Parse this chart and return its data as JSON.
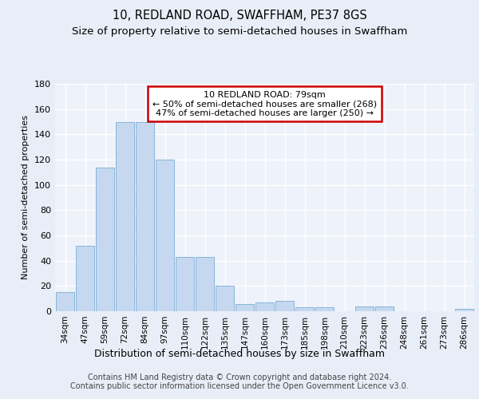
{
  "title": "10, REDLAND ROAD, SWAFFHAM, PE37 8GS",
  "subtitle": "Size of property relative to semi-detached houses in Swaffham",
  "xlabel": "Distribution of semi-detached houses by size in Swaffham",
  "ylabel": "Number of semi-detached properties",
  "categories": [
    "34sqm",
    "47sqm",
    "59sqm",
    "72sqm",
    "84sqm",
    "97sqm",
    "110sqm",
    "122sqm",
    "135sqm",
    "147sqm",
    "160sqm",
    "173sqm",
    "185sqm",
    "198sqm",
    "210sqm",
    "223sqm",
    "236sqm",
    "248sqm",
    "261sqm",
    "273sqm",
    "286sqm"
  ],
  "values": [
    15,
    52,
    114,
    150,
    150,
    120,
    43,
    43,
    20,
    6,
    7,
    8,
    3,
    3,
    0,
    4,
    4,
    0,
    0,
    0,
    2
  ],
  "bar_color": "#c5d8f0",
  "bar_edge_color": "#7aadd4",
  "subject_bar_index": 4,
  "annotation_text": "10 REDLAND ROAD: 79sqm\n← 50% of semi-detached houses are smaller (268)\n47% of semi-detached houses are larger (250) →",
  "annotation_box_color": "#ffffff",
  "annotation_box_edge": "#cc0000",
  "footer": "Contains HM Land Registry data © Crown copyright and database right 2024.\nContains public sector information licensed under the Open Government Licence v3.0.",
  "ylim": [
    0,
    180
  ],
  "yticks": [
    0,
    20,
    40,
    60,
    80,
    100,
    120,
    140,
    160,
    180
  ],
  "bg_color": "#e8eef7",
  "plot_bg_color": "#eef2fa",
  "grid_color": "#ffffff",
  "title_fontsize": 10.5,
  "subtitle_fontsize": 9.5,
  "footer_fontsize": 7
}
